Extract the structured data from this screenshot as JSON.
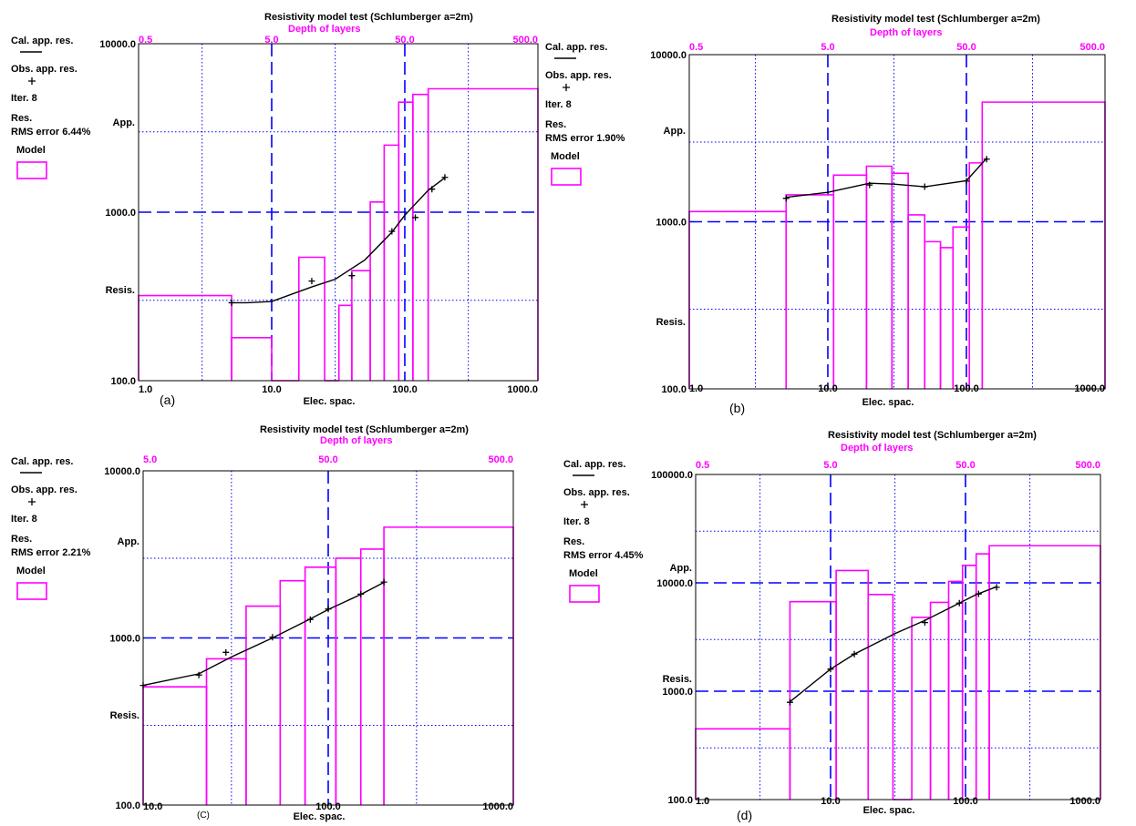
{
  "chart_data": [
    {
      "panel_label": "(a)",
      "type": "line",
      "title": "Resistivity model test (Schlumberger a=2m)",
      "top_axis_label": "Depth of layers",
      "top_ticks": [
        "0.5",
        "5.0",
        "50.0",
        "500.0"
      ],
      "xlabel": "Elec. spac.",
      "x_ticks": [
        "1.0",
        "10.0",
        "100.0",
        "1000.0"
      ],
      "xlim": [
        1,
        1000
      ],
      "y_ticks": [
        "100.0",
        "1000.0",
        "10000.0"
      ],
      "ylim": [
        100,
        10000
      ],
      "y_axis_words": [
        "App.",
        "Res.",
        "Resis."
      ],
      "x_scale": "log",
      "y_scale": "log",
      "grid": true,
      "legend": {
        "calculated": "Cal. app. res.",
        "observed": "Obs. app. res.",
        "iteration": "Iter. 8",
        "rms": "RMS error 6.44%",
        "model": "Model"
      },
      "colors": {
        "model": "#ff00ff",
        "grid": "#0000ff",
        "curve": "#000000"
      },
      "model": [
        {
          "from": 1,
          "to": 5,
          "res": 320
        },
        {
          "from": 5,
          "to": 10,
          "res": 180
        },
        {
          "from": 10,
          "to": 16,
          "res": 100
        },
        {
          "from": 16,
          "to": 25,
          "res": 540
        },
        {
          "from": 25,
          "to": 32,
          "res": 100
        },
        {
          "from": 32,
          "to": 40,
          "res": 280
        },
        {
          "from": 40,
          "to": 55,
          "res": 450
        },
        {
          "from": 55,
          "to": 70,
          "res": 1150
        },
        {
          "from": 70,
          "to": 90,
          "res": 2500
        },
        {
          "from": 90,
          "to": 115,
          "res": 4500
        },
        {
          "from": 115,
          "to": 150,
          "res": 5000
        },
        {
          "from": 150,
          "to": 1000,
          "res": 5400
        }
      ],
      "calculated": {
        "x": [
          5,
          6.5,
          10,
          20,
          30,
          50,
          80,
          100,
          150,
          200
        ],
        "y": [
          290,
          290,
          295,
          360,
          400,
          520,
          760,
          960,
          1350,
          1600
        ]
      },
      "observed": {
        "x": [
          5,
          20,
          40,
          80,
          120,
          160,
          200
        ],
        "y": [
          290,
          390,
          420,
          770,
          930,
          1370,
          1610
        ]
      }
    },
    {
      "panel_label": "(b)",
      "type": "line",
      "title": "Resistivity model test (Schlumberger a=2m)",
      "top_axis_label": "Depth of layers",
      "top_ticks": [
        "0.5",
        "5.0",
        "50.0",
        "500.0"
      ],
      "xlabel": "Elec. spac.",
      "x_ticks": [
        "1.0",
        "10.0",
        "100.0",
        "1000.0"
      ],
      "xlim": [
        1,
        1000
      ],
      "y_ticks": [
        "100.0",
        "1000.0",
        "10000.0"
      ],
      "ylim": [
        100,
        10000
      ],
      "y_axis_words": [
        "App.",
        "Res.",
        "Resis."
      ],
      "x_scale": "log",
      "y_scale": "log",
      "grid": true,
      "legend": {
        "calculated": "Cal. app. res.",
        "observed": "Obs. app. res.",
        "iteration": "Iter. 8",
        "rms": "RMS error 1.90%",
        "model": "Model"
      },
      "colors": {
        "model": "#ff00ff",
        "grid": "#0000ff",
        "curve": "#000000"
      },
      "model": [
        {
          "from": 1,
          "to": 5,
          "res": 1150
        },
        {
          "from": 5,
          "to": 11,
          "res": 1450
        },
        {
          "from": 11,
          "to": 19,
          "res": 1900
        },
        {
          "from": 19,
          "to": 29,
          "res": 2150
        },
        {
          "from": 29,
          "to": 38,
          "res": 1950
        },
        {
          "from": 38,
          "to": 50,
          "res": 1100
        },
        {
          "from": 50,
          "to": 65,
          "res": 760
        },
        {
          "from": 65,
          "to": 80,
          "res": 700
        },
        {
          "from": 80,
          "to": 105,
          "res": 930
        },
        {
          "from": 105,
          "to": 130,
          "res": 2250
        },
        {
          "from": 130,
          "to": 1000,
          "res": 5200
        }
      ],
      "calculated": {
        "x": [
          5,
          10,
          20,
          30,
          50,
          100,
          140
        ],
        "y": [
          1400,
          1500,
          1700,
          1680,
          1620,
          1760,
          2400
        ]
      },
      "observed": {
        "x": [
          5,
          20,
          50,
          100,
          140
        ],
        "y": [
          1380,
          1660,
          1620,
          1750,
          2370
        ]
      }
    },
    {
      "panel_label": "(C)",
      "type": "line",
      "title": "Resistivity model test (Schlumberger a=2m)",
      "top_axis_label": "Depth of layers",
      "top_ticks": [
        "5.0",
        "50.0",
        "500.0"
      ],
      "xlabel": "Elec. spac.",
      "x_ticks": [
        "10.0",
        "100.0",
        "1000.0"
      ],
      "xlim": [
        10,
        1000
      ],
      "y_ticks": [
        "100.0",
        "1000.0",
        "10000.0"
      ],
      "ylim": [
        100,
        10000
      ],
      "y_axis_words": [
        "App.",
        "Res.",
        "Resis."
      ],
      "x_scale": "log",
      "y_scale": "log",
      "grid": true,
      "legend": {
        "calculated": "Cal. app. res.",
        "observed": "Obs. app. res.",
        "iteration": "Iter. 8",
        "rms": "RMS error 2.21%",
        "model": "Model"
      },
      "colors": {
        "model": "#ff00ff",
        "grid": "#0000ff",
        "curve": "#000000"
      },
      "model": [
        {
          "from": 10,
          "to": 22,
          "res": 510
        },
        {
          "from": 22,
          "to": 36,
          "res": 750
        },
        {
          "from": 36,
          "to": 55,
          "res": 1550
        },
        {
          "from": 55,
          "to": 75,
          "res": 2200
        },
        {
          "from": 75,
          "to": 110,
          "res": 2650
        },
        {
          "from": 110,
          "to": 150,
          "res": 3000
        },
        {
          "from": 150,
          "to": 200,
          "res": 3400
        },
        {
          "from": 200,
          "to": 1000,
          "res": 4600
        }
      ],
      "calculated": {
        "x": [
          10,
          20,
          30,
          50,
          80,
          100,
          150,
          200
        ],
        "y": [
          520,
          610,
          770,
          1000,
          1300,
          1480,
          1820,
          2150
        ]
      },
      "observed": {
        "x": [
          10,
          20,
          28,
          50,
          80,
          100,
          150,
          200
        ],
        "y": [
          520,
          600,
          820,
          1010,
          1290,
          1490,
          1830,
          2160
        ]
      }
    },
    {
      "panel_label": "(d)",
      "type": "line",
      "title": "Resistivity model test (Schlumberger a=2m)",
      "top_axis_label": "Depth of layers",
      "top_ticks": [
        "0.5",
        "5.0",
        "50.0",
        "500.0"
      ],
      "xlabel": "Elec. spac.",
      "x_ticks": [
        "1.0",
        "10.0",
        "100.0",
        "1000.0"
      ],
      "xlim": [
        1,
        1000
      ],
      "y_ticks": [
        "100.0",
        "1000.0",
        "10000.0",
        "100000.0"
      ],
      "ylim": [
        100,
        100000
      ],
      "y_axis_words": [
        "App.",
        "Res.",
        "Resis."
      ],
      "x_scale": "log",
      "y_scale": "log",
      "grid": true,
      "legend": {
        "calculated": "Cal. app. res.",
        "observed": "Obs. app. res.",
        "iteration": "Iter. 8",
        "rms": "RMS error 4.45%",
        "model": "Model"
      },
      "colors": {
        "model": "#ff00ff",
        "grid": "#0000ff",
        "curve": "#000000"
      },
      "model": [
        {
          "from": 1,
          "to": 5,
          "res": 450
        },
        {
          "from": 5,
          "to": 11,
          "res": 6700
        },
        {
          "from": 11,
          "to": 19,
          "res": 13000
        },
        {
          "from": 19,
          "to": 29,
          "res": 7800
        },
        {
          "from": 29,
          "to": 40,
          "res": 100
        },
        {
          "from": 40,
          "to": 55,
          "res": 4800
        },
        {
          "from": 55,
          "to": 75,
          "res": 6600
        },
        {
          "from": 75,
          "to": 95,
          "res": 10300
        },
        {
          "from": 95,
          "to": 120,
          "res": 14500
        },
        {
          "from": 120,
          "to": 150,
          "res": 18500
        },
        {
          "from": 150,
          "to": 1000,
          "res": 22000
        }
      ],
      "calculated": {
        "x": [
          5,
          10,
          15,
          30,
          50,
          90,
          120,
          170
        ],
        "y": [
          800,
          1600,
          2200,
          3400,
          4500,
          6500,
          7800,
          9200
        ]
      },
      "observed": {
        "x": [
          5,
          10,
          15,
          50,
          90,
          125,
          170
        ],
        "y": [
          790,
          1600,
          2200,
          4300,
          6500,
          7900,
          9100
        ]
      }
    }
  ]
}
